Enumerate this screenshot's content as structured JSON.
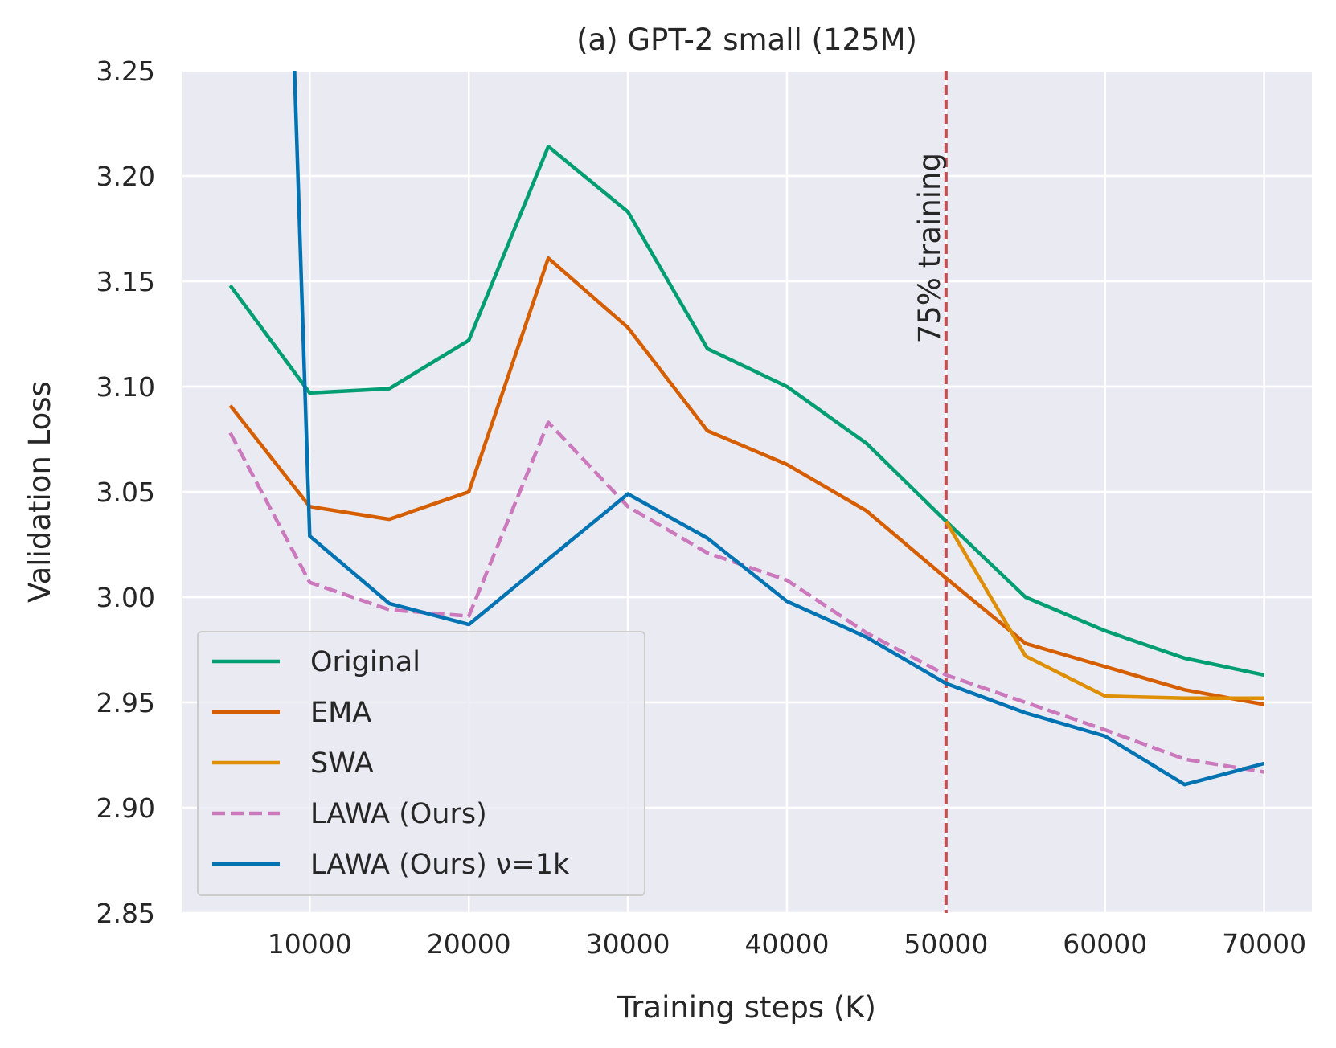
{
  "chart_data": {
    "type": "line",
    "title": "(a) GPT-2 small (125M)",
    "xlabel": "Training steps (K)",
    "ylabel": "Validation Loss",
    "xlim": [
      2000,
      73000
    ],
    "ylim": [
      2.85,
      3.25
    ],
    "xticks": [
      10000,
      20000,
      30000,
      40000,
      50000,
      60000,
      70000
    ],
    "yticks": [
      2.85,
      2.9,
      2.95,
      3.0,
      3.05,
      3.1,
      3.15,
      3.2,
      3.25
    ],
    "ytick_labels": [
      "2.85",
      "2.90",
      "2.95",
      "3.00",
      "3.05",
      "3.10",
      "3.15",
      "3.20",
      "3.25"
    ],
    "grid": true,
    "legend_position": "lower-left",
    "series": [
      {
        "name": "Original",
        "color": "#029e73",
        "dash": "solid",
        "x": [
          5000,
          10000,
          15000,
          20000,
          25000,
          30000,
          35000,
          40000,
          45000,
          50000,
          55000,
          60000,
          65000,
          70000
        ],
        "y": [
          3.148,
          3.097,
          3.099,
          3.122,
          3.214,
          3.183,
          3.118,
          3.1,
          3.073,
          3.036,
          3.0,
          2.984,
          2.971,
          2.963
        ]
      },
      {
        "name": "EMA",
        "color": "#d55e00",
        "dash": "solid",
        "x": [
          5000,
          10000,
          15000,
          20000,
          25000,
          30000,
          35000,
          40000,
          45000,
          50000,
          55000,
          60000,
          65000,
          70000
        ],
        "y": [
          3.091,
          3.043,
          3.037,
          3.05,
          3.161,
          3.128,
          3.079,
          3.063,
          3.041,
          3.009,
          2.978,
          2.967,
          2.956,
          2.949
        ]
      },
      {
        "name": "SWA",
        "color": "#de8f05",
        "dash": "solid",
        "x": [
          50000,
          55000,
          60000,
          65000,
          70000
        ],
        "y": [
          3.036,
          2.972,
          2.953,
          2.952,
          2.952
        ]
      },
      {
        "name": "LAWA (Ours)",
        "color": "#cc78bc",
        "dash": "dashed",
        "x": [
          5000,
          10000,
          15000,
          20000,
          25000,
          30000,
          35000,
          40000,
          45000,
          50000,
          55000,
          60000,
          65000,
          70000
        ],
        "y": [
          3.078,
          3.007,
          2.994,
          2.991,
          3.083,
          3.043,
          3.021,
          3.008,
          2.983,
          2.963,
          2.95,
          2.937,
          2.923,
          2.917
        ]
      },
      {
        "name": "LAWA (Ours) ν=1k",
        "color": "#0173b2",
        "dash": "solid",
        "x": [
          9000,
          10000,
          15000,
          20000,
          25000,
          30000,
          35000,
          40000,
          45000,
          50000,
          55000,
          60000,
          65000,
          70000
        ],
        "y": [
          3.26,
          3.029,
          2.997,
          2.987,
          3.018,
          3.049,
          3.028,
          2.998,
          2.981,
          2.959,
          2.945,
          2.934,
          2.911,
          2.921
        ]
      }
    ],
    "annotations": [
      {
        "type": "vline",
        "x": 50000,
        "color": "#c44e52",
        "dash": "dashed",
        "text": "75% training"
      }
    ]
  }
}
